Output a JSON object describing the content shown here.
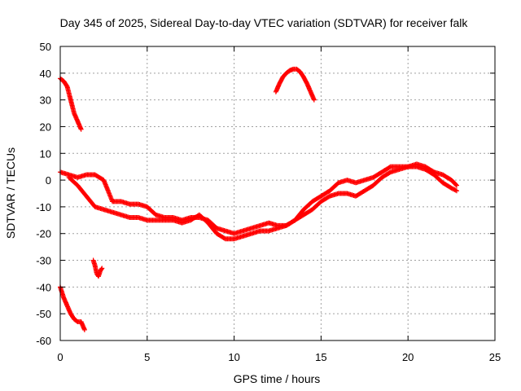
{
  "chart_data": {
    "type": "scatter",
    "title": "Day 345 of 2025, Sidereal Day-to-day VTEC variation (SDTVAR) for receiver falk",
    "xlabel": "GPS time / hours",
    "ylabel": "SDTVAR / TECUs",
    "xlim": [
      0,
      25
    ],
    "ylim": [
      -60,
      50
    ],
    "xticks": [
      0,
      5,
      10,
      15,
      20,
      25
    ],
    "yticks": [
      -60,
      -50,
      -40,
      -30,
      -20,
      -10,
      0,
      10,
      20,
      30,
      40,
      50
    ],
    "grid": true,
    "legend": "none",
    "marker": "+",
    "series": [
      {
        "name": "upper-early-arc",
        "x": [
          0.0,
          0.2,
          0.4,
          0.6,
          0.8,
          1.0,
          1.2
        ],
        "y": [
          38,
          37,
          35,
          30,
          25,
          22,
          19
        ]
      },
      {
        "name": "lower-early-arc",
        "x": [
          0.0,
          0.2,
          0.4,
          0.6,
          0.8,
          1.0,
          1.2,
          1.4
        ],
        "y": [
          -40,
          -44,
          -47,
          -50,
          -52,
          -53,
          -53,
          -56
        ]
      },
      {
        "name": "short-arc-2h",
        "x": [
          1.9,
          2.0,
          2.1,
          2.2,
          2.3,
          2.4
        ],
        "y": [
          -30,
          -32,
          -35,
          -36,
          -34,
          -33
        ]
      },
      {
        "name": "main-upper-band",
        "x": [
          0,
          0.5,
          1.0,
          1.5,
          2.0,
          2.5,
          3.0,
          3.5,
          4.0,
          4.5,
          5.0,
          5.5,
          6.0,
          6.5,
          7.0,
          7.5,
          8.0,
          8.5,
          9.0,
          9.5,
          10.0,
          10.5,
          11.0,
          11.5,
          12.0,
          12.5,
          13.0,
          13.5,
          14.0,
          14.5,
          15.0,
          15.5,
          16.0,
          16.5,
          17.0,
          17.5,
          18.0,
          18.5,
          19.0,
          19.5,
          20.0,
          20.5,
          21.0,
          21.5,
          22.0,
          22.5,
          22.8
        ],
        "y": [
          3,
          2,
          1,
          2,
          2,
          0,
          -8,
          -8,
          -9,
          -9,
          -10,
          -13,
          -14,
          -14,
          -15,
          -14,
          -14,
          -15,
          -18,
          -19,
          -20,
          -19,
          -18,
          -17,
          -16,
          -17,
          -17,
          -15,
          -11,
          -8,
          -6,
          -4,
          -1,
          0,
          -1,
          0,
          1,
          3,
          5,
          5,
          5,
          6,
          5,
          3,
          2,
          0,
          -2
        ]
      },
      {
        "name": "main-lower-band",
        "x": [
          0.5,
          1.0,
          1.5,
          2.0,
          2.5,
          3.0,
          3.5,
          4.0,
          4.5,
          5.0,
          5.5,
          6.0,
          6.5,
          7.0,
          7.5,
          8.0,
          8.5,
          9.0,
          9.5,
          10.0,
          10.5,
          11.0,
          11.5,
          12.0,
          12.5,
          13.0,
          13.5,
          14.0,
          14.5,
          15.0,
          15.5,
          16.0,
          16.5,
          17.0,
          17.5,
          18.0,
          18.5,
          19.0,
          19.5,
          20.0,
          20.5,
          21.0,
          21.5,
          22.0,
          22.5,
          22.8
        ],
        "y": [
          1,
          -2,
          -6,
          -10,
          -11,
          -12,
          -13,
          -14,
          -14,
          -15,
          -15,
          -15,
          -15,
          -16,
          -15,
          -13,
          -16,
          -20,
          -22,
          -22,
          -21,
          -20,
          -19,
          -19,
          -18,
          -17,
          -15,
          -13,
          -11,
          -8,
          -6,
          -5,
          -5,
          -6,
          -4,
          -2,
          1,
          3,
          4,
          5,
          5,
          4,
          2,
          -1,
          -3,
          -4
        ]
      },
      {
        "name": "arc-13h",
        "x": [
          12.4,
          12.6,
          12.8,
          13.0,
          13.2,
          13.4,
          13.6,
          13.8,
          14.0,
          14.2,
          14.4,
          14.6
        ],
        "y": [
          33,
          36,
          38.5,
          40,
          41,
          41.5,
          41.5,
          40.5,
          38.5,
          36,
          33,
          30
        ]
      }
    ]
  }
}
